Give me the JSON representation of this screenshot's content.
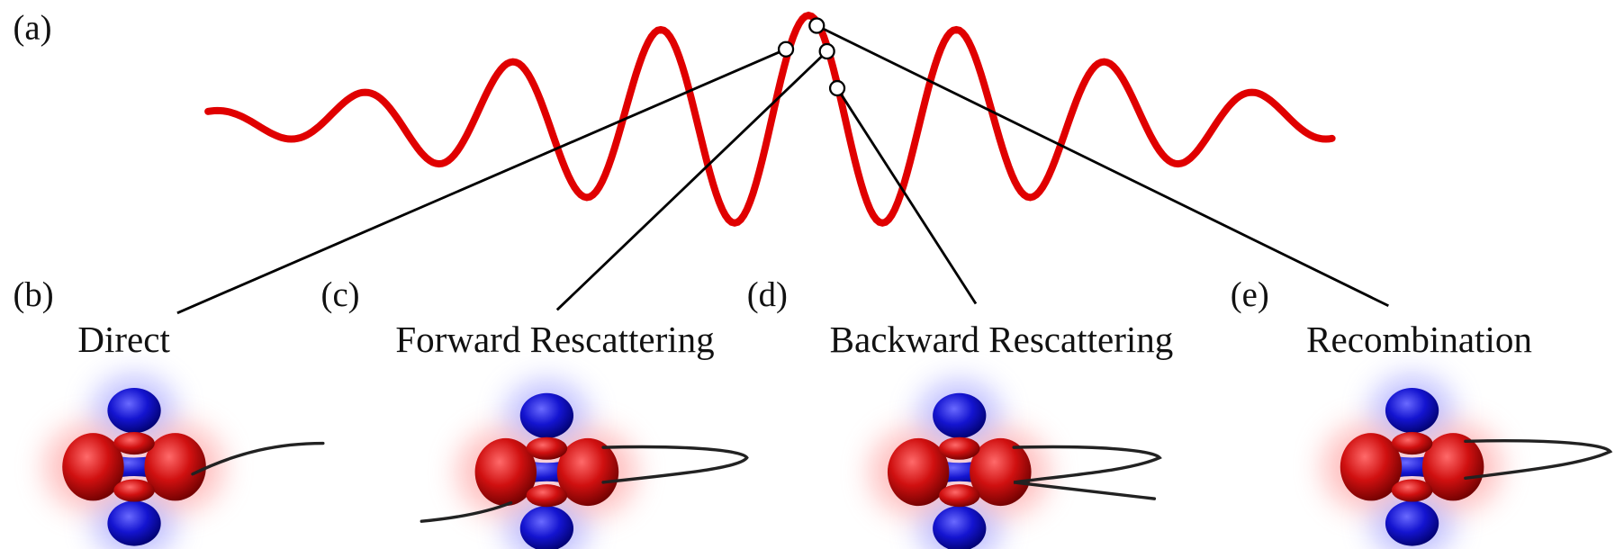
{
  "wave": {
    "label": "(a)"
  },
  "panels": [
    {
      "label": "(b)",
      "title": "Direct"
    },
    {
      "label": "(c)",
      "title": "Forward Rescattering"
    },
    {
      "label": "(d)",
      "title": "Backward Rescattering"
    },
    {
      "label": "(e)",
      "title": "Recombination"
    }
  ]
}
